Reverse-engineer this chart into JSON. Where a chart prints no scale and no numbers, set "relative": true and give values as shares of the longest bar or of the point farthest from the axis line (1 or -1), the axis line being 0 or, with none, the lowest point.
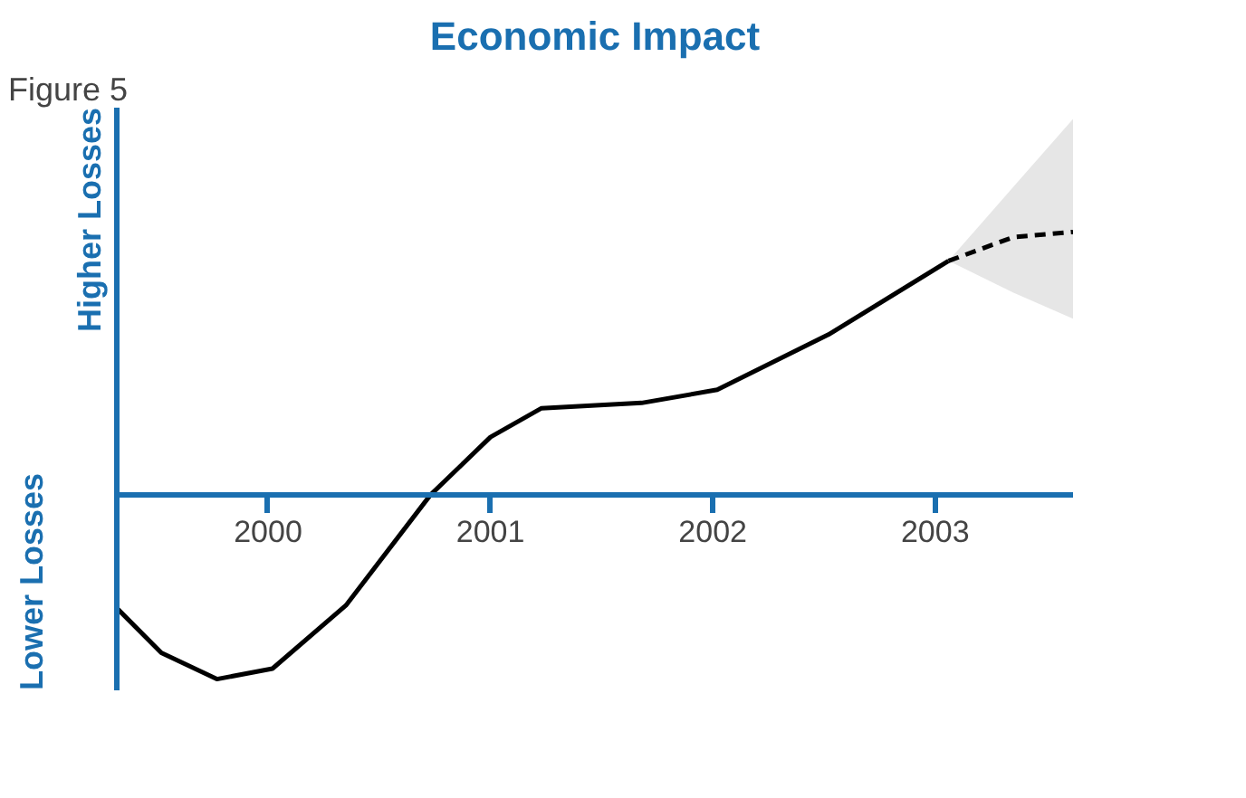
{
  "chart_data": {
    "type": "line",
    "title": "Economic Impact",
    "relative": true,
    "xlim": [
      1999.32,
      2003.62
    ],
    "xticks": [
      2000,
      2001,
      2002,
      2003
    ],
    "annotations": [
      "Figure 5",
      "Higher Losses",
      "Lower Losses"
    ],
    "series": [
      {
        "color": "#000000",
        "line_style": "solid",
        "x": [
          1999.32,
          1999.52,
          1999.77,
          2000.02,
          2000.35,
          2000.73,
          2001.0,
          2001.23,
          2001.68,
          2002.02,
          2002.52,
          2003.06
        ],
        "values": [
          -0.43,
          -0.6,
          -0.7,
          -0.66,
          -0.42,
          0,
          0.22,
          0.33,
          0.35,
          0.4,
          0.61,
          0.89
        ]
      },
      {
        "color": "#000000",
        "line_style": "dashed",
        "x": [
          2003.06,
          2003.35,
          2003.62
        ],
        "values": [
          0.89,
          0.98,
          1.0
        ],
        "lower": [
          0.89,
          0.77,
          0.67
        ],
        "upper": [
          0.89,
          1.17,
          1.43
        ]
      }
    ]
  }
}
